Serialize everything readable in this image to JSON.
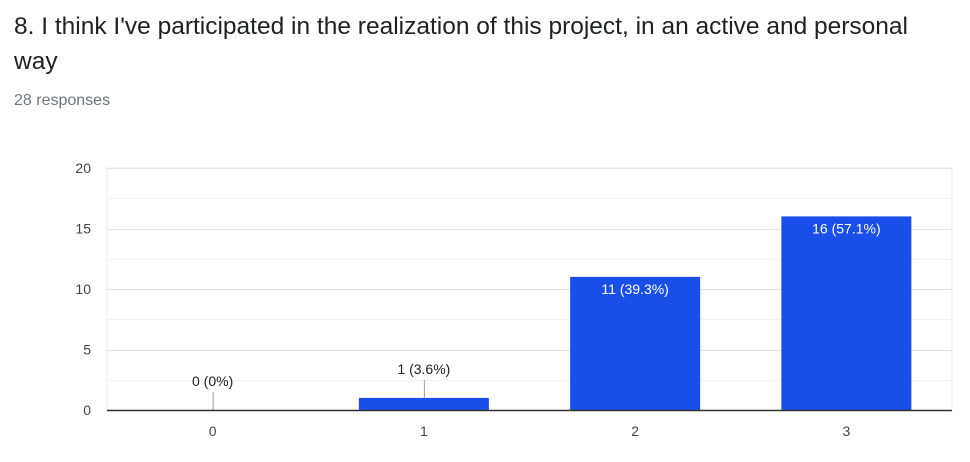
{
  "question": {
    "title": "8. I think I've participated in the realization of this project, in an active and personal way",
    "responses": "28 responses"
  },
  "chart_data": {
    "type": "bar",
    "categories": [
      "0",
      "1",
      "2",
      "3"
    ],
    "values": [
      0,
      1,
      11,
      16
    ],
    "data_labels": [
      "0 (0%)",
      "1 (3.6%)",
      "11 (39.3%)",
      "16 (57.1%)"
    ],
    "title": "",
    "xlabel": "",
    "ylabel": "",
    "ylim": [
      0,
      20
    ],
    "y_ticks": [
      0,
      5,
      10,
      15,
      20
    ],
    "grid": true,
    "legend": "none",
    "bar_color": "#1a4ee8"
  }
}
